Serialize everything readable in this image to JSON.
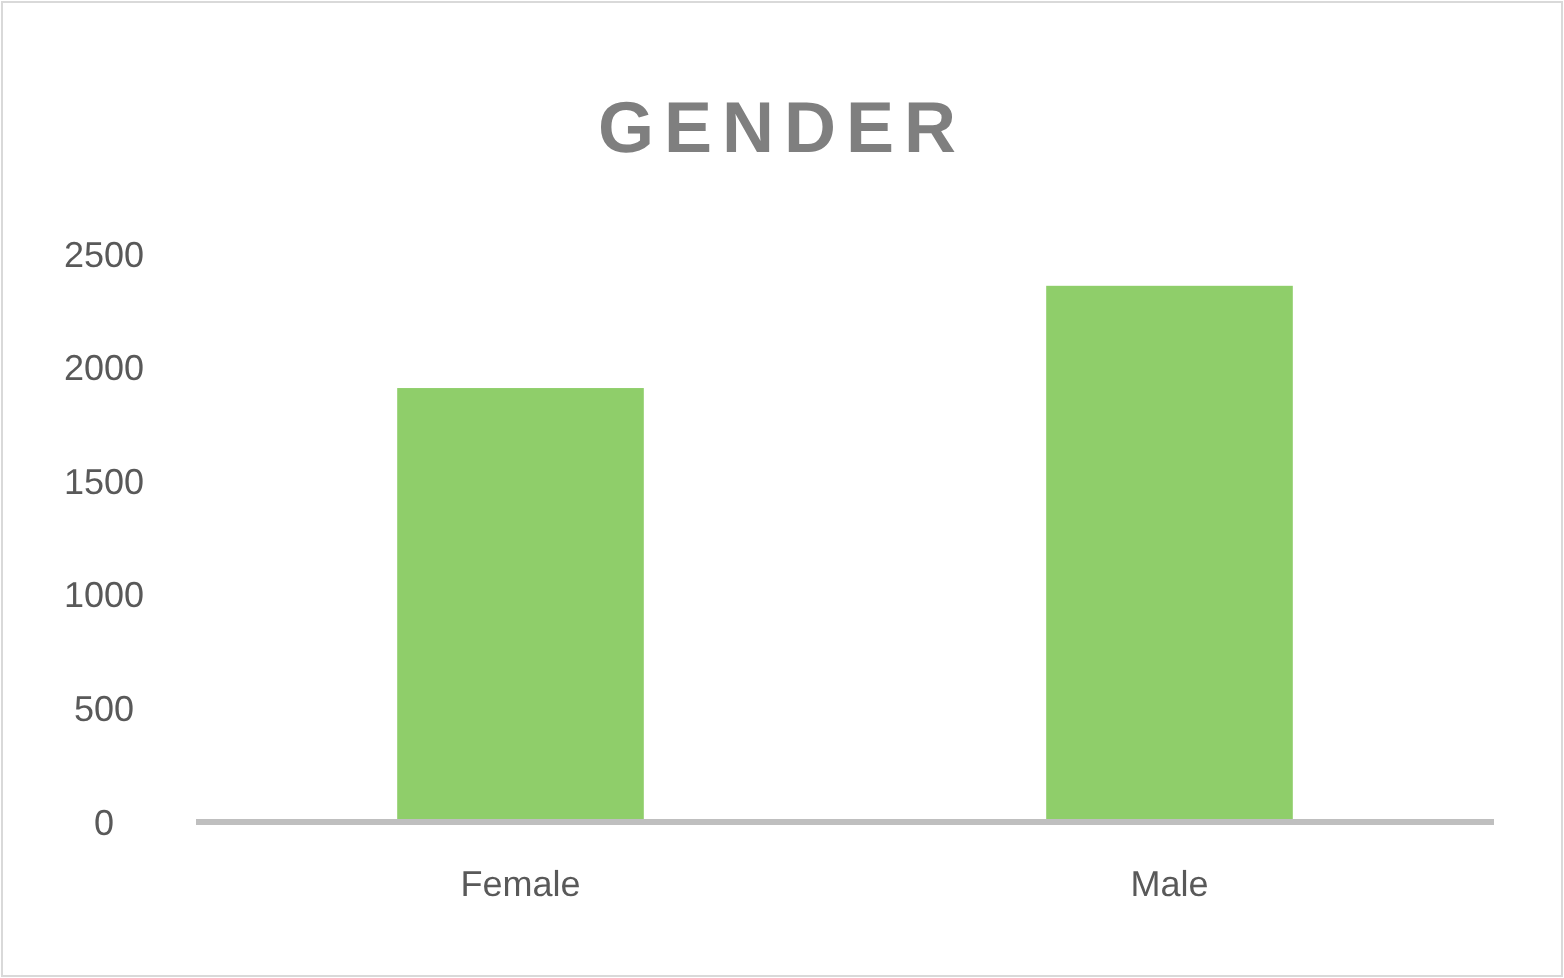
{
  "chart_data": {
    "type": "bar",
    "title": "GENDER",
    "categories": [
      "Female",
      "Male"
    ],
    "values": [
      1910,
      2360
    ],
    "color": "#8fce6a",
    "ylim": [
      0,
      2500
    ],
    "yticks": [
      0,
      500,
      1000,
      1500,
      2000,
      2500
    ],
    "grid": false
  }
}
